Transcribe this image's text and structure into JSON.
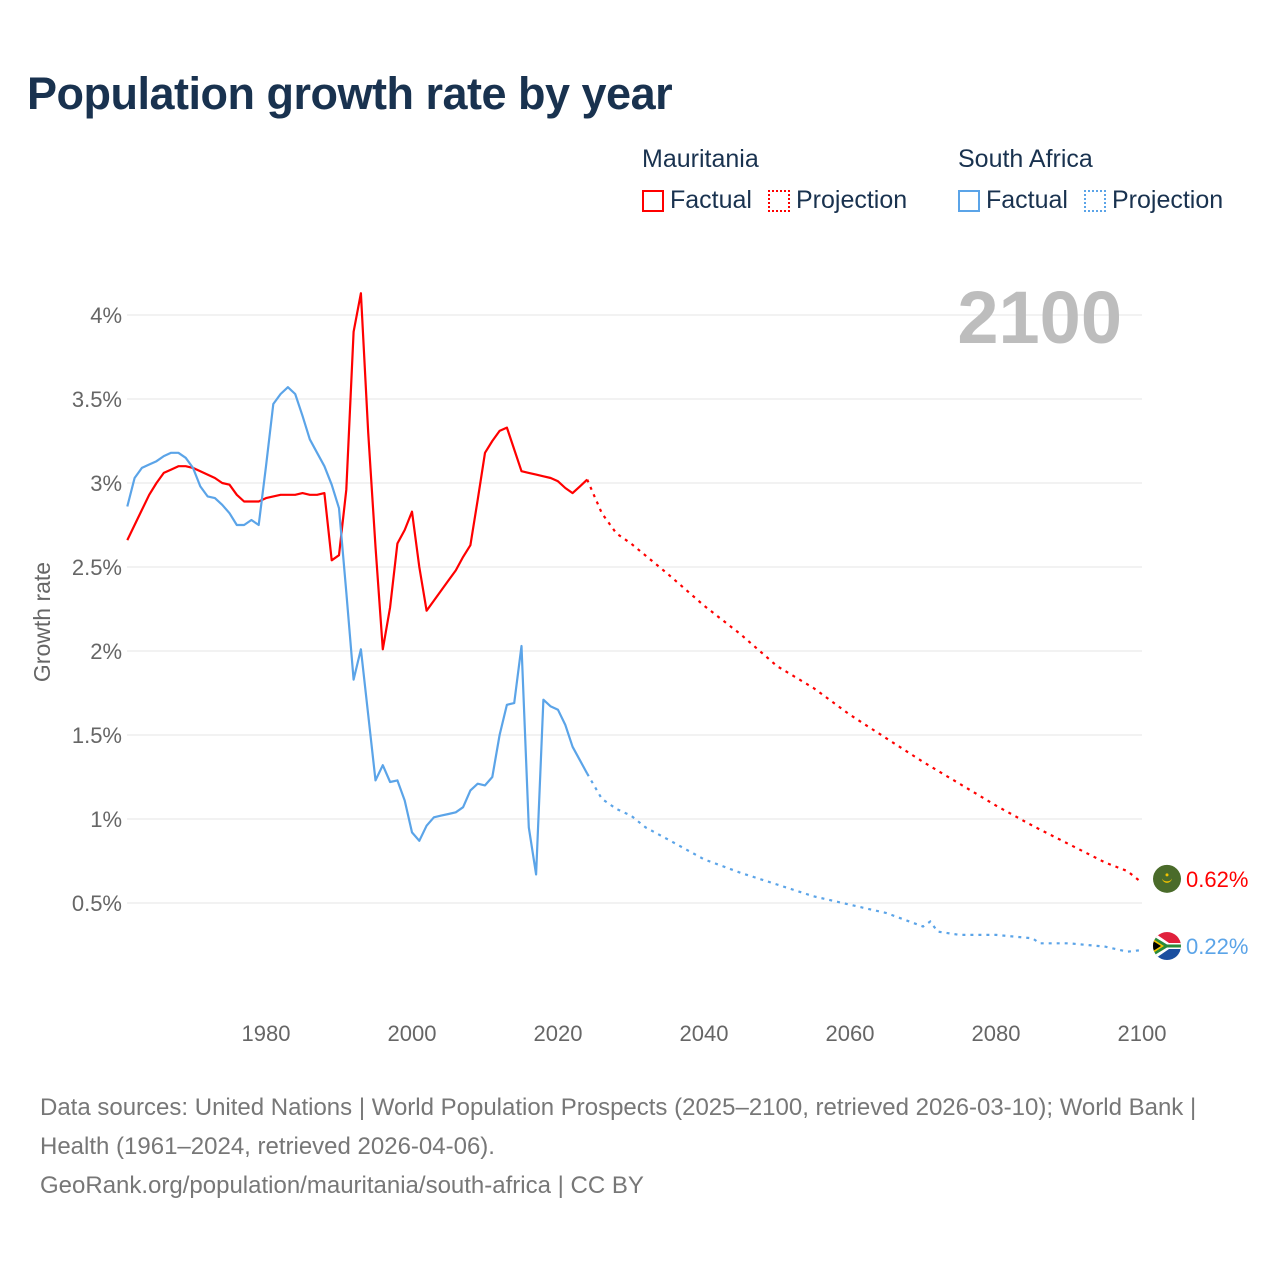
{
  "title": "Population growth rate by year",
  "legend": [
    {
      "country": "Mauritania",
      "color": "#ff0000",
      "factual": "Factual",
      "projection": "Projection"
    },
    {
      "country": "South Africa",
      "color": "#5ba4e8",
      "factual": "Factual",
      "projection": "Projection"
    }
  ],
  "footer": {
    "sources": "Data sources: United Nations | World Population Prospects (2025–2100, retrieved 2026-03-10); World Bank | Health (1961–2024, retrieved 2026-04-06).",
    "link": "GeoRank.org/population/mauritania/south-africa | CC BY"
  },
  "chart_data": {
    "type": "line",
    "title": "Population growth rate by year",
    "ylabel": "Growth rate",
    "xlabel": "",
    "year_label": "2100",
    "xlim": [
      1961,
      2100
    ],
    "ylim": [
      0,
      4.2
    ],
    "x_ticks": [
      1980,
      2000,
      2020,
      2040,
      2060,
      2080,
      2100
    ],
    "y_ticks": [
      {
        "v": 0.5,
        "label": "0.5%"
      },
      {
        "v": 1,
        "label": "1%"
      },
      {
        "v": 1.5,
        "label": "1.5%"
      },
      {
        "v": 2,
        "label": "2%"
      },
      {
        "v": 2.5,
        "label": "2.5%"
      },
      {
        "v": 3,
        "label": "3%"
      },
      {
        "v": 3.5,
        "label": "3.5%"
      },
      {
        "v": 4,
        "label": "4%"
      }
    ],
    "grid": true,
    "series": [
      {
        "name": "Mauritania",
        "color": "#ff0000",
        "end_label": "0.62%",
        "flag": "mauritania",
        "factual": {
          "x": [
            1961,
            1962,
            1963,
            1964,
            1965,
            1966,
            1967,
            1968,
            1969,
            1970,
            1971,
            1972,
            1973,
            1974,
            1975,
            1976,
            1977,
            1978,
            1979,
            1980,
            1981,
            1982,
            1983,
            1984,
            1985,
            1986,
            1987,
            1988,
            1989,
            1990,
            1991,
            1992,
            1993,
            1994,
            1995,
            1996,
            1997,
            1998,
            1999,
            2000,
            2001,
            2002,
            2003,
            2004,
            2005,
            2006,
            2007,
            2008,
            2009,
            2010,
            2011,
            2012,
            2013,
            2014,
            2015,
            2016,
            2017,
            2018,
            2019,
            2020,
            2021,
            2022,
            2023,
            2024
          ],
          "y": [
            2.66,
            2.75,
            2.84,
            2.93,
            3.0,
            3.06,
            3.08,
            3.1,
            3.1,
            3.09,
            3.07,
            3.05,
            3.03,
            3.0,
            2.99,
            2.93,
            2.89,
            2.89,
            2.89,
            2.91,
            2.92,
            2.93,
            2.93,
            2.93,
            2.94,
            2.93,
            2.93,
            2.94,
            2.54,
            2.57,
            2.96,
            3.9,
            4.13,
            3.3,
            2.62,
            2.01,
            2.26,
            2.64,
            2.72,
            2.83,
            2.5,
            2.24,
            2.3,
            2.36,
            2.42,
            2.48,
            2.56,
            2.63,
            2.9,
            3.18,
            3.25,
            3.31,
            3.33,
            3.2,
            3.07,
            3.06,
            3.05,
            3.04,
            3.03,
            3.01,
            2.97,
            2.94,
            2.98,
            3.02
          ]
        },
        "projection": {
          "x": [
            2024,
            2026,
            2028,
            2030,
            2035,
            2040,
            2045,
            2050,
            2055,
            2060,
            2065,
            2070,
            2075,
            2080,
            2085,
            2090,
            2095,
            2098,
            2100
          ],
          "y": [
            3.02,
            2.82,
            2.7,
            2.64,
            2.46,
            2.27,
            2.1,
            1.91,
            1.78,
            1.62,
            1.48,
            1.34,
            1.21,
            1.08,
            0.96,
            0.85,
            0.74,
            0.69,
            0.62
          ]
        }
      },
      {
        "name": "South Africa",
        "color": "#5ba4e8",
        "end_label": "0.22%",
        "flag": "south-africa",
        "factual": {
          "x": [
            1961,
            1962,
            1963,
            1964,
            1965,
            1966,
            1967,
            1968,
            1969,
            1970,
            1971,
            1972,
            1973,
            1974,
            1975,
            1976,
            1977,
            1978,
            1979,
            1980,
            1981,
            1982,
            1983,
            1984,
            1985,
            1986,
            1987,
            1988,
            1989,
            1990,
            1991,
            1992,
            1993,
            1994,
            1995,
            1996,
            1997,
            1998,
            1999,
            2000,
            2001,
            2002,
            2003,
            2004,
            2005,
            2006,
            2007,
            2008,
            2009,
            2010,
            2011,
            2012,
            2013,
            2014,
            2015,
            2016,
            2017,
            2018,
            2019,
            2020,
            2021,
            2022,
            2023,
            2024
          ],
          "y": [
            2.86,
            3.03,
            3.09,
            3.11,
            3.13,
            3.16,
            3.18,
            3.18,
            3.15,
            3.09,
            2.98,
            2.92,
            2.91,
            2.87,
            2.82,
            2.75,
            2.75,
            2.78,
            2.75,
            3.1,
            3.47,
            3.53,
            3.57,
            3.53,
            3.4,
            3.26,
            3.18,
            3.1,
            2.99,
            2.85,
            2.35,
            1.83,
            2.01,
            1.62,
            1.23,
            1.32,
            1.22,
            1.23,
            1.11,
            0.92,
            0.87,
            0.96,
            1.01,
            1.02,
            1.03,
            1.04,
            1.07,
            1.17,
            1.21,
            1.2,
            1.25,
            1.5,
            1.68,
            1.69,
            2.03,
            0.95,
            0.67,
            1.71,
            1.67,
            1.65,
            1.56,
            1.43,
            1.35,
            1.27
          ]
        },
        "projection": {
          "x": [
            2024,
            2026,
            2028,
            2030,
            2032,
            2035,
            2040,
            2045,
            2050,
            2055,
            2060,
            2065,
            2070,
            2071,
            2072,
            2075,
            2080,
            2085,
            2086,
            2090,
            2095,
            2098,
            2100
          ],
          "y": [
            1.27,
            1.12,
            1.06,
            1.02,
            0.95,
            0.88,
            0.76,
            0.68,
            0.61,
            0.54,
            0.49,
            0.44,
            0.36,
            0.39,
            0.33,
            0.31,
            0.31,
            0.29,
            0.26,
            0.26,
            0.24,
            0.21,
            0.22
          ]
        }
      }
    ]
  }
}
